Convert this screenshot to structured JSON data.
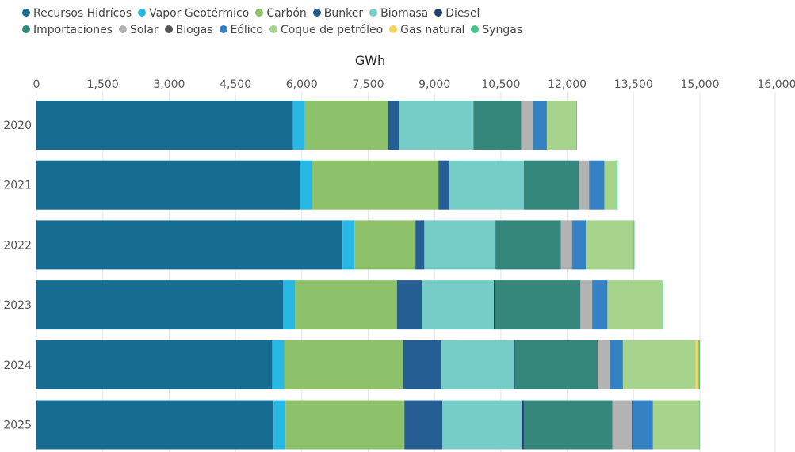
{
  "chart_data": {
    "type": "bar",
    "orientation": "horizontal",
    "stacked": true,
    "xlabel": "GWh",
    "xticks": [
      "0",
      "1,500",
      "3,000",
      "4,500",
      "6,000",
      "7,500",
      "9,000",
      "10,500",
      "12,000",
      "13,500",
      "15,000",
      "16,000"
    ],
    "xtick_values": [
      0,
      1500,
      3000,
      4500,
      6000,
      7500,
      9000,
      10500,
      12000,
      13500,
      15000,
      16000
    ],
    "xlim": [
      0,
      16000
    ],
    "grid": "vertical",
    "legend_position": "top",
    "categories": [
      "2020",
      "2021",
      "2022",
      "2023",
      "2024",
      "2025"
    ],
    "series": [
      {
        "name": "Recursos Hidrícos",
        "color": "#176d91",
        "values": [
          5800,
          5950,
          6920,
          5580,
          5330,
          5360
        ]
      },
      {
        "name": "Vapor Geotérmico",
        "color": "#27b8e4",
        "values": [
          270,
          270,
          270,
          270,
          270,
          270
        ]
      },
      {
        "name": "Carbón",
        "color": "#8dc26b",
        "values": [
          1880,
          2870,
          1380,
          2300,
          2690,
          2690
        ]
      },
      {
        "name": "Bunker",
        "color": "#245e92",
        "values": [
          250,
          250,
          200,
          560,
          860,
          860
        ]
      },
      {
        "name": "Biomasa",
        "color": "#76cdc7",
        "values": [
          1680,
          1680,
          1610,
          1630,
          1650,
          1790
        ]
      },
      {
        "name": "Diesel",
        "color": "#1f3f6e",
        "values": [
          0,
          0,
          10,
          20,
          20,
          50
        ]
      },
      {
        "name": "Importaciones",
        "color": "#34877a",
        "values": [
          1080,
          1250,
          1470,
          1940,
          1870,
          2000
        ]
      },
      {
        "name": "Solar",
        "color": "#b3b3b3",
        "values": [
          260,
          230,
          250,
          270,
          270,
          440
        ]
      },
      {
        "name": "Biogas",
        "color": "#555555",
        "values": [
          10,
          10,
          10,
          10,
          10,
          20
        ]
      },
      {
        "name": "Eólico",
        "color": "#3481c3",
        "values": [
          310,
          330,
          300,
          330,
          290,
          460
        ]
      },
      {
        "name": "Coque de petróleo",
        "color": "#a6d48c",
        "values": [
          660,
          280,
          1080,
          1250,
          1640,
          1050
        ]
      },
      {
        "name": "Gas natural",
        "color": "#f4d35e",
        "values": [
          0,
          0,
          0,
          0,
          70,
          0
        ]
      },
      {
        "name": "Syngas",
        "color": "#4cc38a",
        "values": [
          20,
          20,
          20,
          10,
          30,
          10
        ]
      }
    ]
  }
}
